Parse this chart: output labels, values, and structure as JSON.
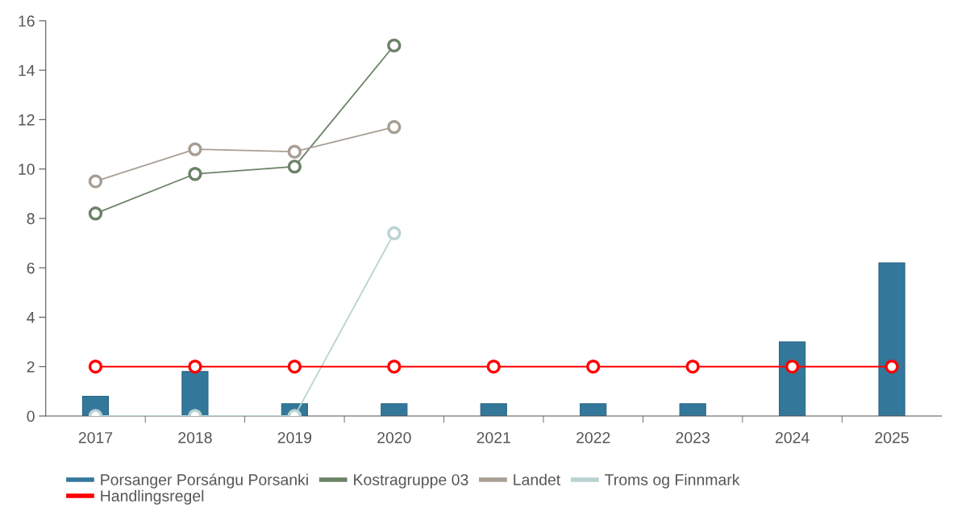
{
  "chart_data": {
    "type": "bar",
    "categories": [
      "2017",
      "2018",
      "2019",
      "2020",
      "2021",
      "2022",
      "2023",
      "2024",
      "2025"
    ],
    "series": [
      {
        "name": "Porsanger Porsángu Porsanki",
        "color": "#33789a",
        "values": [
          0.8,
          1.8,
          0.5,
          0.5,
          0.5,
          0.5,
          0.5,
          3.0,
          6.2
        ]
      },
      {
        "name": "Kostragruppe 03",
        "type": "line",
        "color": "#6b8266",
        "values": [
          8.2,
          9.8,
          10.1,
          15.0,
          null,
          null,
          null,
          null,
          null
        ]
      },
      {
        "name": "Landet",
        "type": "line",
        "color": "#a89e94",
        "values": [
          9.5,
          10.8,
          10.7,
          11.7,
          null,
          null,
          null,
          null,
          null
        ]
      },
      {
        "name": "Troms og Finnmark",
        "type": "line",
        "color": "#b9d3d3",
        "values": [
          0,
          0,
          0,
          7.4,
          null,
          null,
          null,
          null,
          null
        ]
      },
      {
        "name": "Handlingsregel",
        "type": "line",
        "color": "#ff0000",
        "values": [
          2,
          2,
          2,
          2,
          2,
          2,
          2,
          2,
          2
        ]
      }
    ],
    "ylim": [
      0,
      16
    ],
    "yticks": [
      0,
      2,
      4,
      6,
      8,
      10,
      12,
      14,
      16
    ],
    "marker": "circle",
    "line_style": "solid",
    "grid": false,
    "legend": "bottom"
  }
}
